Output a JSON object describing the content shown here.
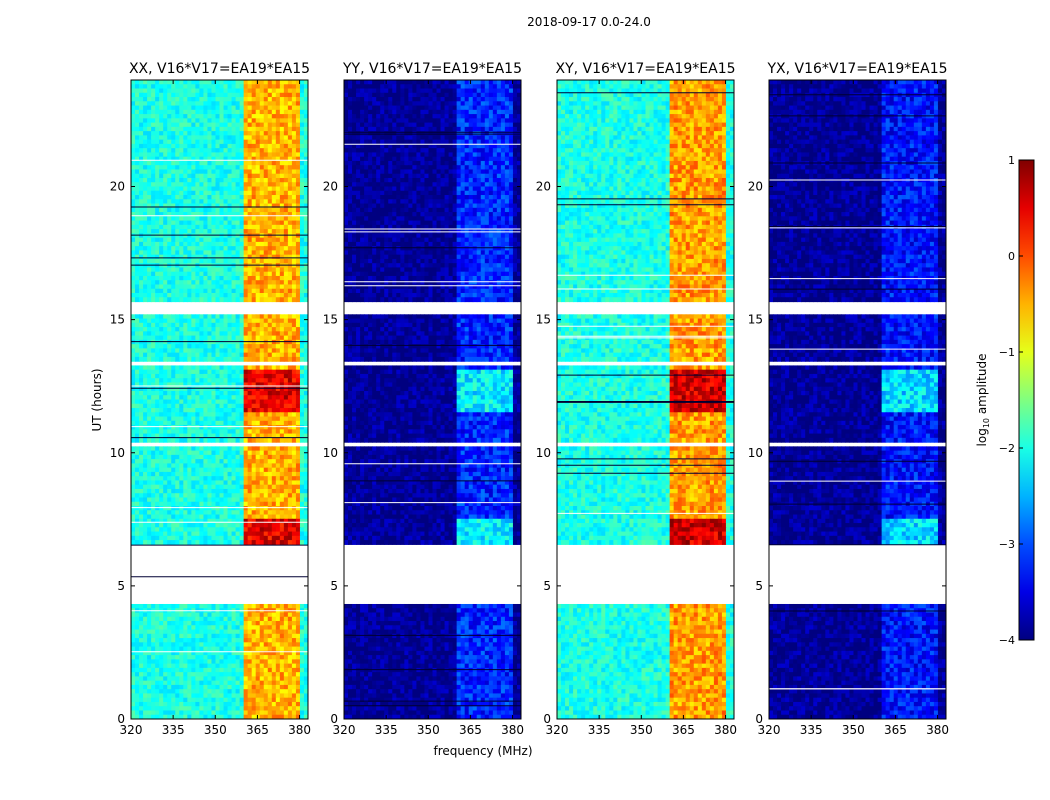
{
  "figure": {
    "suptitle": "2018-09-17 0.0-24.0"
  },
  "chart_data": {
    "type": "heatmap",
    "xlabel": "frequency (MHz)",
    "ylabel": "UT (hours)",
    "xlim": [
      320,
      383
    ],
    "ylim": [
      0,
      24
    ],
    "xticks": [
      320,
      335,
      350,
      365,
      380
    ],
    "yticks": [
      0,
      5,
      10,
      15,
      20
    ],
    "colorbar": {
      "label": "log10 amplitude",
      "label_main": "log",
      "label_sub": "10",
      "label_tail": " amplitude",
      "range": [
        -4,
        1
      ],
      "ticks": [
        "1",
        "0",
        "−1",
        "−2",
        "−3",
        "−4"
      ],
      "colormap": "jet"
    },
    "gaps_hours": [
      [
        4.3,
        6.6
      ],
      [
        15.2,
        15.7
      ],
      [
        10.2,
        10.4
      ],
      [
        13.3,
        13.5
      ]
    ],
    "rfi_band_MHz": [
      360,
      380
    ],
    "panels": [
      {
        "title": "XX, V16*V17=EA19*EA15",
        "baseline": -2.0,
        "band": -0.5
      },
      {
        "title": "YY, V16*V17=EA19*EA15",
        "baseline": -3.9,
        "band": -3.2
      },
      {
        "title": "XY, V16*V17=EA19*EA15",
        "baseline": -2.0,
        "band": -0.4
      },
      {
        "title": "YX, V16*V17=EA19*EA15",
        "baseline": -3.9,
        "band": -3.3
      }
    ]
  }
}
